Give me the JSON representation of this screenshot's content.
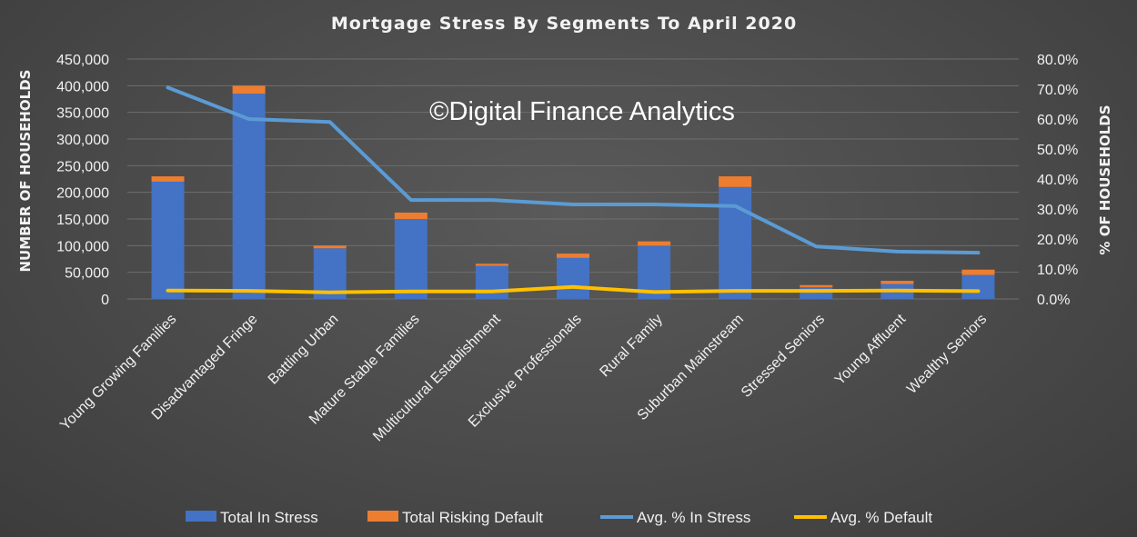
{
  "chart_data": {
    "type": "bar",
    "title": "Mortgage Stress By Segments To April 2020",
    "watermark": "©Digital Finance Analytics",
    "ylabel": "NUMBER OF HOUSEHOLDS",
    "y2label": "% OF HOUSEHOLDS",
    "ylim": [
      0,
      450000
    ],
    "y2lim": [
      0,
      0.8
    ],
    "yticks": [
      "450,000",
      "400,000",
      "350,000",
      "300,000",
      "250,000",
      "200,000",
      "150,000",
      "100,000",
      "50,000",
      "0"
    ],
    "y2ticks": [
      "80.0%",
      "70.0%",
      "60.0%",
      "50.0%",
      "40.0%",
      "30.0%",
      "20.0%",
      "10.0%",
      "0.0%"
    ],
    "categories": [
      "Young Growing Families",
      "Disadvantaged Fringe",
      "Battling Urban",
      "Mature Stable Families",
      "Multicultural Establishment",
      "Exclusive Professionals",
      "Rural Family",
      "Suburban Mainstream",
      "Stressed Seniors",
      "Young Affluent",
      "Wealthy Seniors"
    ],
    "series": [
      {
        "name": "Total In Stress",
        "kind": "bar",
        "axis": "left",
        "color": "#4472c4",
        "values": [
          220000,
          385000,
          95000,
          150000,
          62000,
          77000,
          100000,
          210000,
          22000,
          28000,
          45000
        ]
      },
      {
        "name": "Total Risking Default",
        "kind": "bar-stacked",
        "axis": "left",
        "color": "#ed7d31",
        "values": [
          10000,
          15000,
          5000,
          12000,
          4000,
          8000,
          8000,
          20000,
          4000,
          6000,
          10000
        ]
      },
      {
        "name": "Avg. % In Stress",
        "kind": "line",
        "axis": "right",
        "color": "#5b9bd5",
        "values": [
          0.705,
          0.6,
          0.59,
          0.33,
          0.33,
          0.315,
          0.315,
          0.31,
          0.175,
          0.158,
          0.154
        ]
      },
      {
        "name": "Avg. % Default",
        "kind": "line",
        "axis": "right",
        "color": "#ffc000",
        "values": [
          0.028,
          0.027,
          0.022,
          0.025,
          0.025,
          0.04,
          0.023,
          0.027,
          0.027,
          0.028,
          0.026
        ]
      }
    ],
    "grid": true,
    "legend": "bottom"
  }
}
